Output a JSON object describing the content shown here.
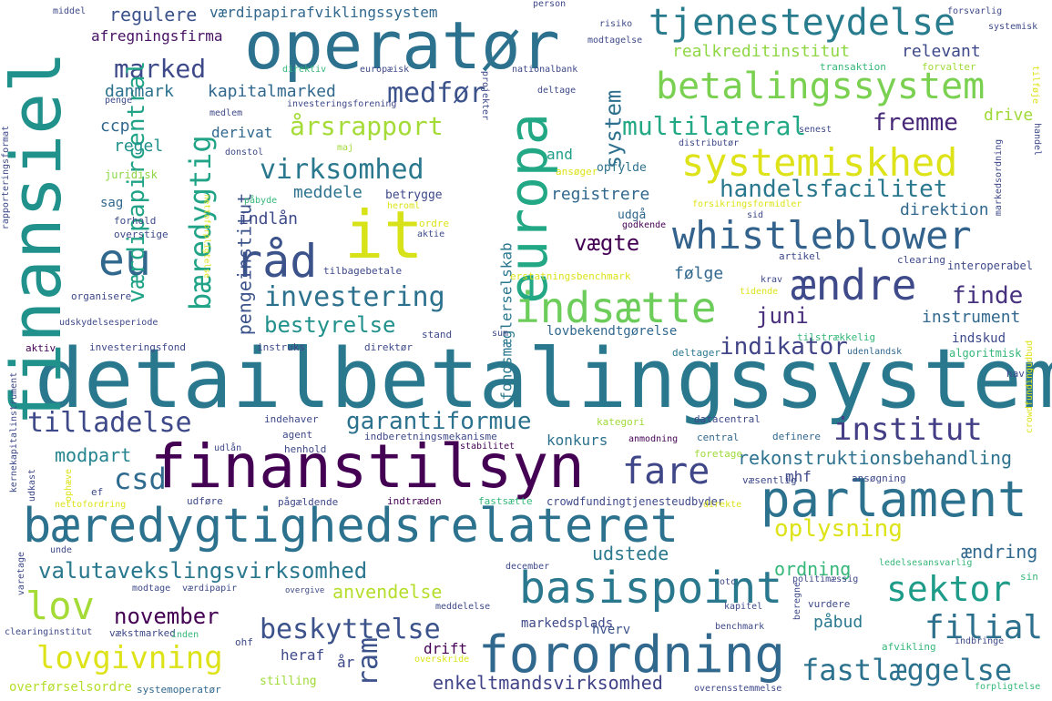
{
  "words": [
    {
      "text": "detailbetalingssystem",
      "color": "#2a788e"
    },
    {
      "text": "finansiel",
      "color": "#21918c"
    },
    {
      "text": "operatør",
      "color": "#2c728e"
    },
    {
      "text": "finanstilsyn",
      "color": "#440154"
    },
    {
      "text": "bæredygtighedsrelateret",
      "color": "#2c728e"
    },
    {
      "text": "parlament",
      "color": "#2c728e"
    },
    {
      "text": "basispoint",
      "color": "#2a788e"
    },
    {
      "text": "forordning",
      "color": "#31688e"
    },
    {
      "text": "it",
      "color": "#d8e219"
    },
    {
      "text": "europa",
      "color": "#22a884"
    },
    {
      "text": "whistleblower",
      "color": "#33638d"
    },
    {
      "text": "systemiskhed",
      "color": "#dde318"
    },
    {
      "text": "betalingssystem",
      "color": "#7ad151"
    },
    {
      "text": "tjenesteydelse",
      "color": "#287c8e"
    },
    {
      "text": "eu",
      "color": "#31688e"
    },
    {
      "text": "råd",
      "color": "#3b528b"
    },
    {
      "text": "indsætte",
      "color": "#6ccd5a"
    },
    {
      "text": "ændre",
      "color": "#3e4a89"
    },
    {
      "text": "bæredygtig",
      "color": "#20a386"
    },
    {
      "text": "virksomhed",
      "color": "#2a788e"
    },
    {
      "text": "investering",
      "color": "#2c728e"
    },
    {
      "text": "bestyrelse",
      "color": "#21918c"
    },
    {
      "text": "lov",
      "color": "#a5db36"
    },
    {
      "text": "lovgivning",
      "color": "#dde318"
    },
    {
      "text": "tilladelse",
      "color": "#3e4989"
    },
    {
      "text": "fare",
      "color": "#3f4788"
    },
    {
      "text": "institut",
      "color": "#433e85"
    },
    {
      "text": "sektor",
      "color": "#1e9c89"
    },
    {
      "text": "filial",
      "color": "#2d708e"
    },
    {
      "text": "fastlæggelse",
      "color": "#2c728e"
    },
    {
      "text": "valutavekslingsvirksomhed",
      "color": "#2a788e"
    },
    {
      "text": "beskyttelse",
      "color": "#3b528b"
    },
    {
      "text": "november",
      "color": "#440154"
    },
    {
      "text": "ram",
      "color": "#3b528b"
    },
    {
      "text": "csd",
      "color": "#2f6b8e"
    },
    {
      "text": "garantiformue",
      "color": "#2c728e"
    },
    {
      "text": "indikator",
      "color": "#414487"
    },
    {
      "text": "handelsfacilitet",
      "color": "#2a788e"
    },
    {
      "text": "multilateral",
      "color": "#22a884"
    },
    {
      "text": "årsrapport",
      "color": "#a5db36"
    },
    {
      "text": "medfør",
      "color": "#3b528b"
    },
    {
      "text": "marked",
      "color": "#3e4989"
    },
    {
      "text": "vægte",
      "color": "#440154"
    },
    {
      "text": "oplysning",
      "color": "#dde318"
    },
    {
      "text": "finde",
      "color": "#46327e"
    },
    {
      "text": "fremme",
      "color": "#482878"
    },
    {
      "text": "juni",
      "color": "#472d7b"
    },
    {
      "text": "rekonstruktionsbehandling",
      "color": "#2c728e"
    },
    {
      "text": "enkeltmandsvirksomhed",
      "color": "#404387"
    },
    {
      "text": "anvendelse",
      "color": "#b5de2b"
    },
    {
      "text": "modpart",
      "color": "#25858e"
    },
    {
      "text": "udstede",
      "color": "#2a788e"
    },
    {
      "text": "ordning",
      "color": "#35b779"
    },
    {
      "text": "ændring",
      "color": "#31688e"
    },
    {
      "text": "pengeinstitut",
      "color": "#3b528b"
    },
    {
      "text": "værdipapircentral",
      "color": "#20a386"
    },
    {
      "text": "system",
      "color": "#2d708e"
    },
    {
      "text": "kapitalmarked",
      "color": "#31688e"
    },
    {
      "text": "danmark",
      "color": "#2c728e"
    },
    {
      "text": "regulere",
      "color": "#3b528b"
    },
    {
      "text": "afregningsfirma",
      "color": "#471164"
    },
    {
      "text": "værdipapirafviklingssystem",
      "color": "#31688e"
    },
    {
      "text": "realkreditinstitut",
      "color": "#8fd744"
    },
    {
      "text": "relevant",
      "color": "#3e4989"
    },
    {
      "text": "drive",
      "color": "#a0da39"
    },
    {
      "text": "registrere",
      "color": "#31688e"
    },
    {
      "text": "direktion",
      "color": "#31688e"
    },
    {
      "text": "instrument",
      "color": "#31688e"
    },
    {
      "text": "følge",
      "color": "#31688e"
    },
    {
      "text": "meddele",
      "color": "#2c728e"
    },
    {
      "text": "indlån",
      "color": "#3e4989"
    },
    {
      "text": "regel",
      "color": "#21918c"
    },
    {
      "text": "ccp",
      "color": "#31688e"
    },
    {
      "text": "derivat",
      "color": "#31688e"
    },
    {
      "text": "and",
      "color": "#1f9f88"
    },
    {
      "text": "konkurs",
      "color": "#2c728e"
    },
    {
      "text": "indskud",
      "color": "#3e4989"
    },
    {
      "text": "drift",
      "color": "#440154"
    },
    {
      "text": "heraf",
      "color": "#3e4989"
    },
    {
      "text": "år",
      "color": "#3e4989"
    },
    {
      "text": "mhf",
      "color": "#3e4989"
    },
    {
      "text": "påbud",
      "color": "#2a788e"
    },
    {
      "text": "hverv",
      "color": "#3b528b"
    },
    {
      "text": "fondsmæglerselskab",
      "color": "#2a788e"
    },
    {
      "text": "sag",
      "color": "#31688e"
    },
    {
      "text": "lovbekendtgørelse",
      "color": "#31688e"
    },
    {
      "text": "udgå",
      "color": "#31688e"
    },
    {
      "text": "betrygge",
      "color": "#3e4989"
    },
    {
      "text": "opfylde",
      "color": "#2c728e"
    },
    {
      "text": "juridisk",
      "color": "#8fd744"
    },
    {
      "text": "markedsplads",
      "color": "#3e4989"
    },
    {
      "text": "stilling",
      "color": "#a0da39"
    },
    {
      "text": "overførselsordre",
      "color": "#b5de2b"
    },
    {
      "text": "systemoperatør",
      "color": "#31688e"
    },
    {
      "text": "crowdfundingtjenesteudbyder",
      "color": "#3e4989"
    },
    {
      "text": "fastsætte",
      "color": "#35b779"
    },
    {
      "text": "indtræden",
      "color": "#440154"
    },
    {
      "text": "pågældende",
      "color": "#3e4989"
    },
    {
      "text": "væsentlig",
      "color": "#3e4989"
    },
    {
      "text": "foretage",
      "color": "#a0da39"
    },
    {
      "text": "erstatningsbenchmark",
      "color": "#dde318"
    },
    {
      "text": "forsikringsformidler",
      "color": "#dde318"
    },
    {
      "text": "interoperabel",
      "color": "#3e4989"
    },
    {
      "text": "algoritmisk",
      "color": "#35b779"
    },
    {
      "text": "tilstrækkelig",
      "color": "#35b779"
    },
    {
      "text": "udenlandsk",
      "color": "#31688e"
    },
    {
      "text": "deltager",
      "color": "#2a788e"
    },
    {
      "text": "datacentral",
      "color": "#3e4989"
    },
    {
      "text": "kategori",
      "color": "#a0da39"
    },
    {
      "text": "indberetningsmekanisme",
      "color": "#3e4989"
    },
    {
      "text": "stabilitet",
      "color": "#440154"
    },
    {
      "text": "anmodning",
      "color": "#440154"
    },
    {
      "text": "central",
      "color": "#31688e"
    },
    {
      "text": "definere",
      "color": "#31688e"
    },
    {
      "text": "indehaver",
      "color": "#3e4989"
    },
    {
      "text": "agent",
      "color": "#3e4989"
    },
    {
      "text": "henhold",
      "color": "#3e4989"
    },
    {
      "text": "udlån",
      "color": "#3e4989"
    },
    {
      "text": "investeringsfond",
      "color": "#3e4989"
    },
    {
      "text": "instruks",
      "color": "#3e4989"
    },
    {
      "text": "stand",
      "color": "#3e4989"
    },
    {
      "text": "sum",
      "color": "#3e4989"
    },
    {
      "text": "direktør",
      "color": "#3e4989"
    },
    {
      "text": "organisere",
      "color": "#3e4989"
    },
    {
      "text": "tilbagebetale",
      "color": "#3e4989"
    },
    {
      "text": "heroml",
      "color": "#dde318"
    },
    {
      "text": "ordre",
      "color": "#dde318"
    },
    {
      "text": "aktie",
      "color": "#3e4989"
    },
    {
      "text": "godkende",
      "color": "#440154"
    },
    {
      "text": "påbyde",
      "color": "#35b779"
    },
    {
      "text": "overstige",
      "color": "#3e4989"
    },
    {
      "text": "forhold",
      "color": "#3e4989"
    },
    {
      "text": "donstol",
      "color": "#3e4989"
    },
    {
      "text": "maj",
      "color": "#a0da39"
    },
    {
      "text": "ansøger",
      "color": "#dde318"
    },
    {
      "text": "distributør",
      "color": "#3e4989"
    },
    {
      "text": "senest",
      "color": "#3e4989"
    },
    {
      "text": "sid",
      "color": "#3e4989"
    },
    {
      "text": "artikel",
      "color": "#3e4989"
    },
    {
      "text": "clearing",
      "color": "#3e4989"
    },
    {
      "text": "krav",
      "color": "#3e4989"
    },
    {
      "text": "tidende",
      "color": "#dde318"
    },
    {
      "text": "hav",
      "color": "#3e4989"
    },
    {
      "text": "medlem",
      "color": "#3e4989"
    },
    {
      "text": "penge",
      "color": "#3e4989"
    },
    {
      "text": "investeringsforening",
      "color": "#3e4989"
    },
    {
      "text": "deltage",
      "color": "#3e4989"
    },
    {
      "text": "nationalbank",
      "color": "#3e4989"
    },
    {
      "text": "europæisk",
      "color": "#3e4989"
    },
    {
      "text": "direktiv",
      "color": "#35b779"
    },
    {
      "text": "transaktion",
      "color": "#35b779"
    },
    {
      "text": "forvalter",
      "color": "#a0da39"
    },
    {
      "text": "modtagelse",
      "color": "#3e4989"
    },
    {
      "text": "risiko",
      "color": "#3e4989"
    },
    {
      "text": "forsvarlig",
      "color": "#3e4989"
    },
    {
      "text": "systemisk",
      "color": "#3e4989"
    },
    {
      "text": "middel",
      "color": "#3e4989"
    },
    {
      "text": "person",
      "color": "#3e4989"
    },
    {
      "text": "projekter",
      "color": "#3e4989"
    },
    {
      "text": "tilføje",
      "color": "#dde318"
    },
    {
      "text": "handel",
      "color": "#3e4989"
    },
    {
      "text": "markedsordning",
      "color": "#3e4989"
    },
    {
      "text": "crowdfundingudbud",
      "color": "#dde318"
    },
    {
      "text": "rapporteringsformat",
      "color": "#3e4989"
    },
    {
      "text": "udskydelsesperiode",
      "color": "#3e4989"
    },
    {
      "text": "aktiv",
      "color": "#440154"
    },
    {
      "text": "kernekapitalinstrument",
      "color": "#3e4989"
    },
    {
      "text": "udkast",
      "color": "#3e4989"
    },
    {
      "text": "ophæve",
      "color": "#dde318"
    },
    {
      "text": "ef",
      "color": "#3e4989"
    },
    {
      "text": "nettofordring",
      "color": "#dde318"
    },
    {
      "text": "udføre",
      "color": "#3e4989"
    },
    {
      "text": "unde",
      "color": "#3e4989"
    },
    {
      "text": "varetage",
      "color": "#3e4989"
    },
    {
      "text": "clearinginstitut",
      "color": "#3e4989"
    },
    {
      "text": "vækstmarked",
      "color": "#3e4989"
    },
    {
      "text": "inden",
      "color": "#35b779"
    },
    {
      "text": "modtage",
      "color": "#3e4989"
    },
    {
      "text": "værdipapir",
      "color": "#3e4989"
    },
    {
      "text": "ohf",
      "color": "#3e4989"
    },
    {
      "text": "overgive",
      "color": "#3e4989"
    },
    {
      "text": "meddelelse",
      "color": "#3e4989"
    },
    {
      "text": "overskride",
      "color": "#dde318"
    },
    {
      "text": "december",
      "color": "#3e4989"
    },
    {
      "text": "otc",
      "color": "#3e4989"
    },
    {
      "text": "politimæssig",
      "color": "#3e4989"
    },
    {
      "text": "kapitel",
      "color": "#3e4989"
    },
    {
      "text": "benchmark",
      "color": "#3e4989"
    },
    {
      "text": "beregne",
      "color": "#3e4989"
    },
    {
      "text": "vurdere",
      "color": "#3e4989"
    },
    {
      "text": "afvikling",
      "color": "#35b779"
    },
    {
      "text": "indbringe",
      "color": "#3e4989"
    },
    {
      "text": "overensstemmelse",
      "color": "#3e4989"
    },
    {
      "text": "forpligtelse",
      "color": "#35b779"
    },
    {
      "text": "ledelsesansvarlig",
      "color": "#35b779"
    },
    {
      "text": "sin",
      "color": "#35b779"
    },
    {
      "text": "ansøgning",
      "color": "#3e4989"
    },
    {
      "text": "direkte",
      "color": "#dde318"
    },
    {
      "text": "nettoforpligtelse",
      "color": "#dde318"
    }
  ]
}
